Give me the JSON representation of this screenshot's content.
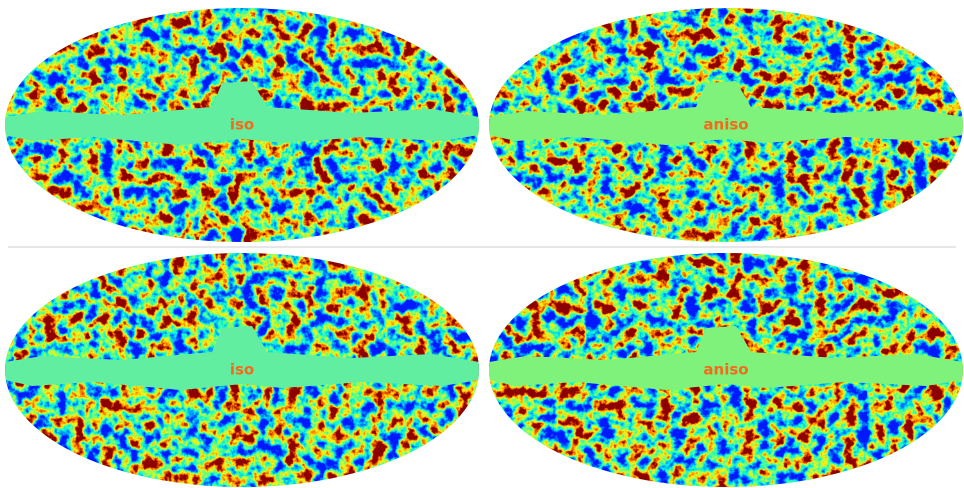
{
  "panels": [
    {
      "label": "iso"
    },
    {
      "label": "aniso"
    },
    {
      "label": "iso"
    },
    {
      "label": "aniso"
    }
  ]
}
